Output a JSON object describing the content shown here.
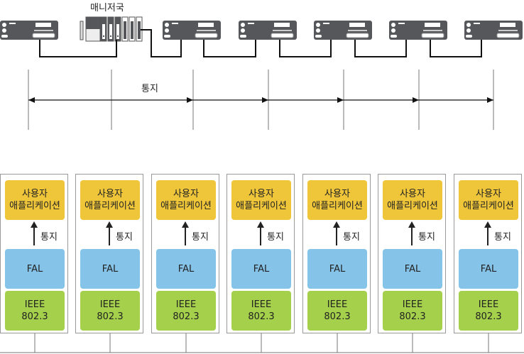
{
  "master_label": "매니저국",
  "notify_label": "통지",
  "nodes": [
    {
      "app": [
        "사용자",
        "애플리케이션"
      ],
      "notify": "통지",
      "fal": "FAL",
      "phy": [
        "IEEE",
        "802.3"
      ]
    },
    {
      "app": [
        "사용자",
        "애플리케이션"
      ],
      "notify": "통지",
      "fal": "FAL",
      "phy": [
        "IEEE",
        "802.3"
      ]
    },
    {
      "app": [
        "사용자",
        "애플리케이션"
      ],
      "notify": "통지",
      "fal": "FAL",
      "phy": [
        "IEEE",
        "802.3"
      ]
    },
    {
      "app": [
        "사용자",
        "애플리케이션"
      ],
      "notify": "통지",
      "fal": "FAL",
      "phy": [
        "IEEE",
        "802.3"
      ]
    },
    {
      "app": [
        "사용자",
        "애플리케이션"
      ],
      "notify": "통지",
      "fal": "FAL",
      "phy": [
        "IEEE",
        "802.3"
      ]
    },
    {
      "app": [
        "사용자",
        "애플리케이션"
      ],
      "notify": "통지",
      "fal": "FAL",
      "phy": [
        "IEEE",
        "802.3"
      ]
    },
    {
      "app": [
        "사용자",
        "애플리케이션"
      ],
      "notify": "통지",
      "fal": "FAL",
      "phy": [
        "IEEE",
        "802.3"
      ]
    }
  ],
  "colors": {
    "app": "#efc53a",
    "fal": "#85c3e8",
    "phy": "#a5d04b",
    "device": "#55575b"
  }
}
